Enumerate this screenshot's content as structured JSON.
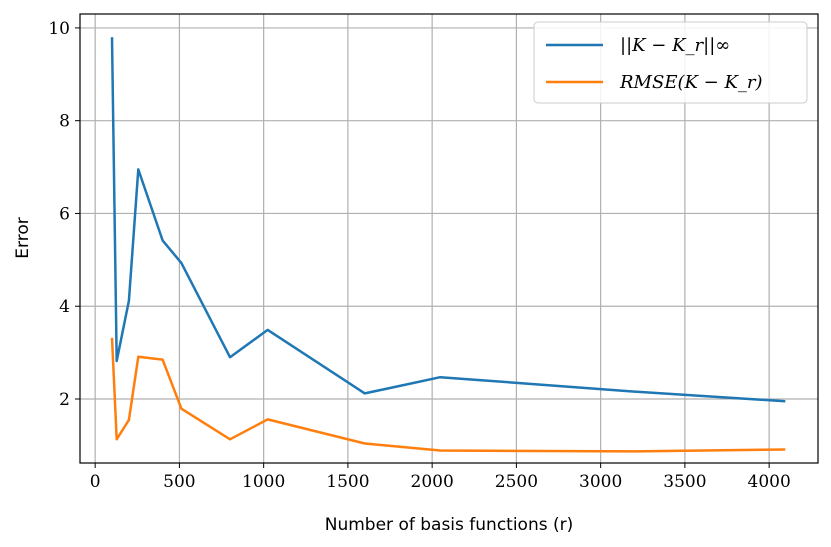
{
  "chart_data": {
    "type": "line",
    "xlabel": "Number of basis functions (r)",
    "ylabel": "Error",
    "xlim": [
      -90,
      4290
    ],
    "ylim": [
      0.62,
      10.3
    ],
    "xticks": [
      0,
      500,
      1000,
      1500,
      2000,
      2500,
      3000,
      3500,
      4000
    ],
    "yticks": [
      2,
      4,
      6,
      8,
      10
    ],
    "grid": true,
    "legend_position": "top-right",
    "series": [
      {
        "name": "||K − K_r||∞",
        "color": "#1f77b4",
        "x": [
          100,
          128,
          200,
          256,
          400,
          512,
          800,
          1024,
          1600,
          2048,
          3200,
          4096
        ],
        "y": [
          9.8,
          2.82,
          4.12,
          6.95,
          5.42,
          4.93,
          2.9,
          3.49,
          2.12,
          2.47,
          2.16,
          1.95
        ]
      },
      {
        "name": "RMSE(K − K_r)",
        "color": "#ff7f0e",
        "x": [
          100,
          128,
          200,
          256,
          400,
          512,
          800,
          1024,
          1600,
          2048,
          3200,
          4096
        ],
        "y": [
          3.32,
          1.13,
          1.55,
          2.91,
          2.85,
          1.79,
          1.13,
          1.56,
          1.04,
          0.89,
          0.87,
          0.91
        ]
      }
    ]
  }
}
